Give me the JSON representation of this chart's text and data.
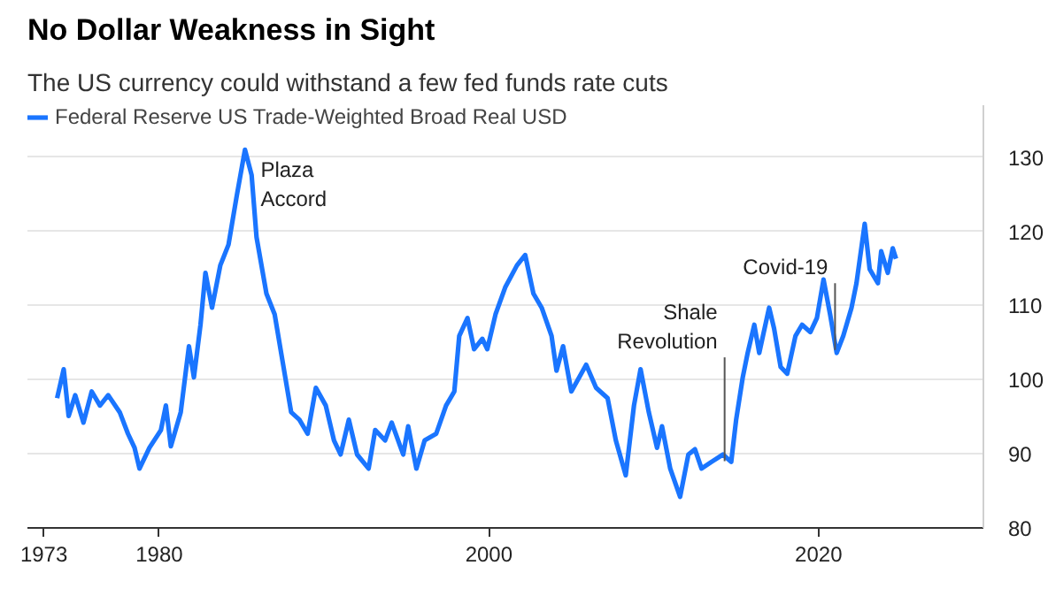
{
  "chart_data": {
    "type": "line",
    "title": "No Dollar Weakness in Sight",
    "subtitle": "The US currency could withstand a few fed funds rate cuts",
    "legend": "top left",
    "grid": "y",
    "xlim": [
      1972,
      2030
    ],
    "ylim": [
      80,
      137
    ],
    "xticks": [
      1973,
      1980,
      2000,
      2020
    ],
    "yticks": [
      80,
      90,
      100,
      110,
      120,
      130
    ],
    "annotations": [
      {
        "text": "Plaza Accord",
        "x": 1985.5,
        "y": 130
      },
      {
        "text": "Shale Revolution",
        "x": 2014.3,
        "y": 89
      },
      {
        "text": "Covid-19",
        "x": 2021.0,
        "y": 104
      }
    ],
    "series": [
      {
        "name": "Federal Reserve US Trade-Weighted Broad Real USD",
        "color": "#1a75ff",
        "x": [
          1973.8,
          1974.2,
          1974.5,
          1974.9,
          1975.4,
          1975.9,
          1976.4,
          1976.9,
          1977.6,
          1978.1,
          1978.5,
          1978.8,
          1979.4,
          1980.1,
          1980.4,
          1980.7,
          1981.3,
          1981.8,
          1982.1,
          1982.5,
          1982.8,
          1983.2,
          1983.7,
          1984.2,
          1984.7,
          1985.2,
          1985.6,
          1985.9,
          1986.5,
          1987.0,
          1987.5,
          1988.0,
          1988.5,
          1989.0,
          1989.5,
          1990.1,
          1990.6,
          1991.0,
          1991.5,
          1992.0,
          1992.7,
          1993.1,
          1993.7,
          1994.1,
          1994.8,
          1995.1,
          1995.6,
          1996.1,
          1996.8,
          1997.4,
          1997.9,
          1998.2,
          1998.7,
          1999.1,
          1999.6,
          1999.9,
          2000.4,
          2001.0,
          2001.7,
          2002.2,
          2002.7,
          2003.2,
          2003.8,
          2004.1,
          2004.5,
          2005.0,
          2005.9,
          2006.5,
          2007.2,
          2007.7,
          2008.3,
          2008.8,
          2009.2,
          2009.7,
          2010.2,
          2010.5,
          2011.0,
          2011.6,
          2012.1,
          2012.5,
          2012.9,
          2013.5,
          2014.2,
          2014.7,
          2015.0,
          2015.4,
          2015.7,
          2016.1,
          2016.4,
          2017.0,
          2017.3,
          2017.7,
          2018.1,
          2018.6,
          2019.0,
          2019.5,
          2019.9,
          2020.3,
          2020.7,
          2021.1,
          2021.5,
          2022.0,
          2022.3,
          2022.8,
          2023.1,
          2023.6,
          2023.8,
          2024.2,
          2024.5,
          2024.7
        ],
        "values": [
          97.5,
          101.4,
          95.1,
          97.9,
          94.2,
          98.4,
          96.5,
          97.9,
          95.6,
          92.7,
          90.8,
          88.0,
          90.8,
          93.2,
          96.5,
          91.0,
          95.6,
          104.5,
          100.3,
          107.4,
          114.4,
          109.7,
          115.4,
          118.2,
          124.8,
          131.0,
          127.6,
          119.2,
          111.6,
          108.8,
          102.2,
          95.6,
          94.6,
          92.7,
          98.9,
          96.5,
          91.8,
          89.9,
          94.6,
          89.9,
          88.0,
          93.2,
          91.8,
          94.2,
          89.9,
          93.7,
          88.0,
          91.8,
          92.7,
          96.5,
          98.4,
          105.9,
          108.3,
          104.1,
          105.5,
          104.1,
          108.8,
          112.5,
          115.4,
          116.8,
          111.6,
          109.7,
          105.9,
          101.2,
          104.5,
          98.4,
          102.0,
          98.9,
          97.5,
          91.8,
          87.1,
          96.5,
          101.4,
          95.6,
          90.8,
          93.7,
          88.0,
          84.2,
          89.9,
          90.6,
          88.0,
          88.9,
          89.9,
          88.9,
          94.6,
          100.3,
          103.6,
          107.4,
          103.6,
          109.7,
          106.9,
          101.7,
          100.8,
          105.9,
          107.4,
          106.4,
          108.3,
          113.5,
          108.8,
          103.6,
          105.9,
          109.7,
          113.0,
          121.0,
          114.9,
          113.0,
          117.3,
          114.4,
          117.7,
          116.3
        ]
      }
    ]
  }
}
